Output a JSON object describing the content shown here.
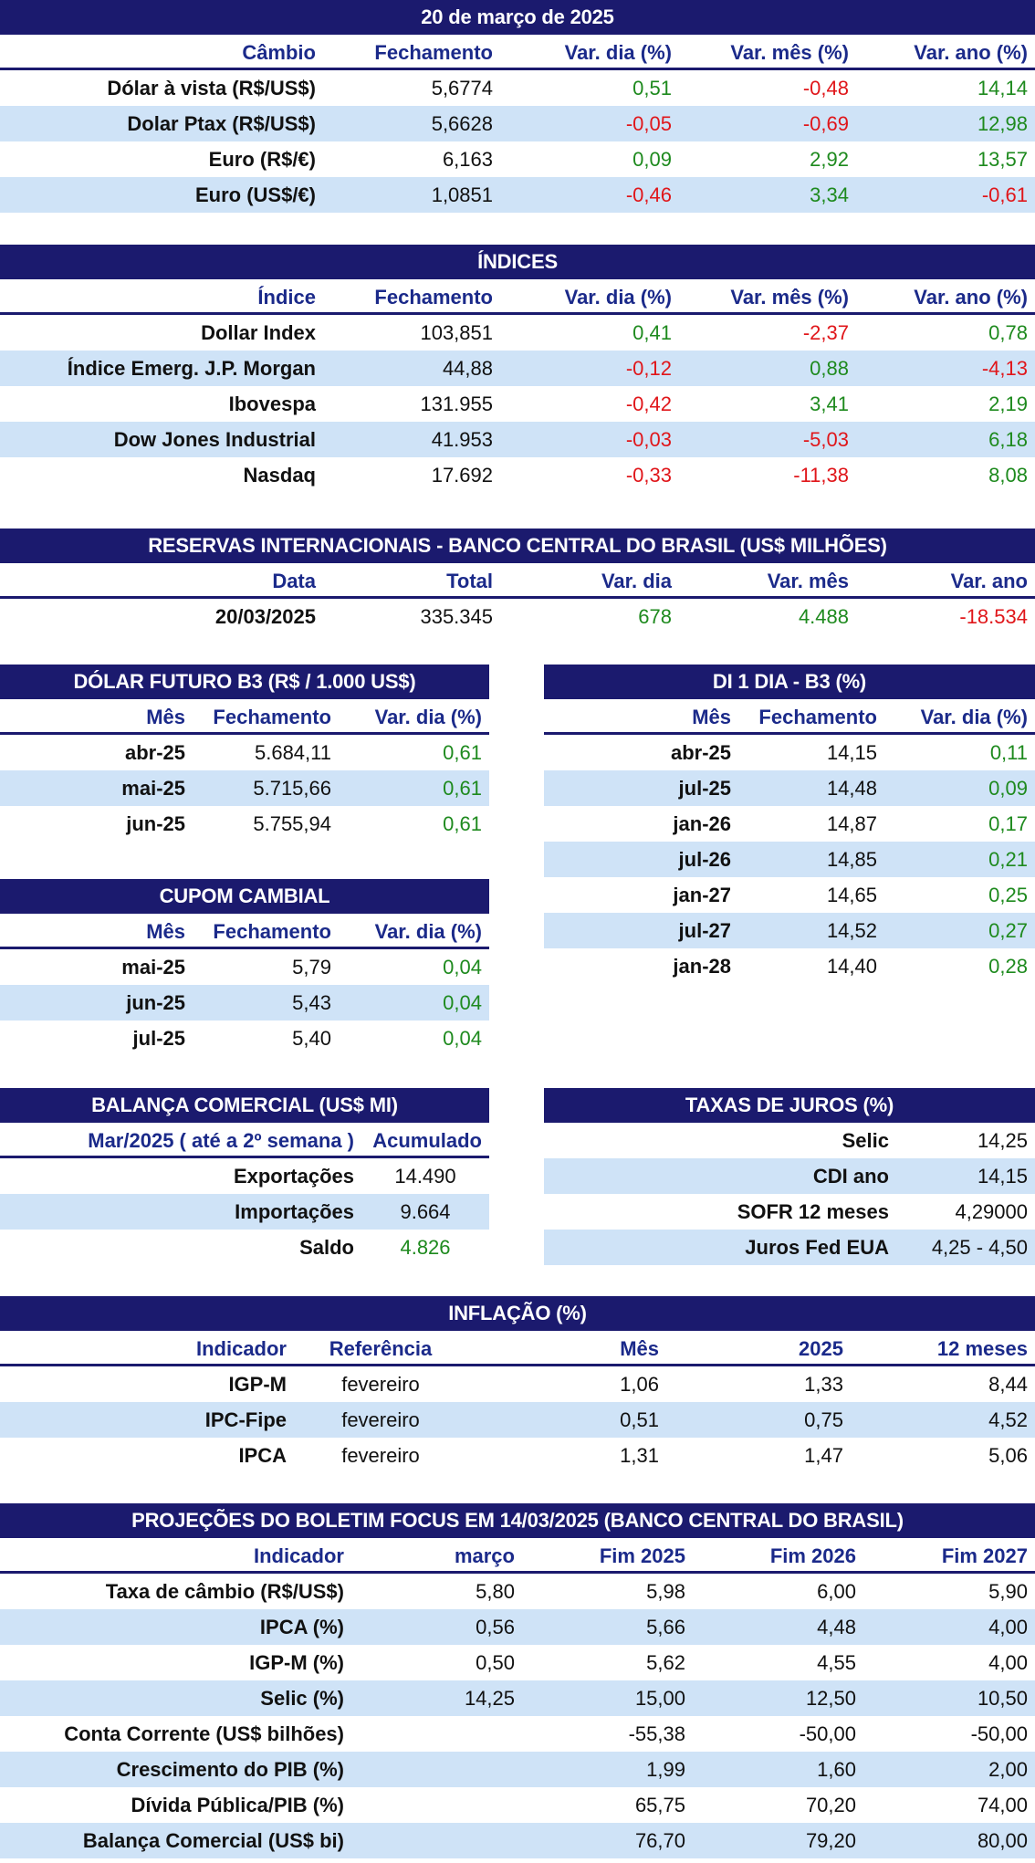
{
  "colors": {
    "banner": "#1b1a6e",
    "header_text": "#1b2a8a",
    "shade": "#cfe3f7",
    "positive": "#1e8a1e",
    "negative": "#e0161a"
  },
  "cambio": {
    "title": "20 de março de 2025",
    "headers": [
      "Câmbio",
      "Fechamento",
      "Var. dia (%)",
      "Var. mês (%)",
      "Var. ano (%)"
    ],
    "rows": [
      [
        "Dólar à vista (R$/US$)",
        "5,6774",
        "0,51",
        "-0,48",
        "14,14"
      ],
      [
        "Dolar Ptax (R$/US$)",
        "5,6628",
        "-0,05",
        "-0,69",
        "12,98"
      ],
      [
        "Euro (R$/€)",
        "6,163",
        "0,09",
        "2,92",
        "13,57"
      ],
      [
        "Euro (US$/€)",
        "1,0851",
        "-0,46",
        "3,34",
        "-0,61"
      ]
    ]
  },
  "indices": {
    "title": "ÍNDICES",
    "headers": [
      "Índice",
      "Fechamento",
      "Var. dia (%)",
      "Var. mês (%)",
      "Var. ano (%)"
    ],
    "rows": [
      [
        "Dollar Index",
        "103,851",
        "0,41",
        "-2,37",
        "0,78"
      ],
      [
        "Índice Emerg. J.P. Morgan",
        "44,88",
        "-0,12",
        "0,88",
        "-4,13"
      ],
      [
        "Ibovespa",
        "131.955",
        "-0,42",
        "3,41",
        "2,19"
      ],
      [
        "Dow Jones Industrial",
        "41.953",
        "-0,03",
        "-5,03",
        "6,18"
      ],
      [
        "Nasdaq",
        "17.692",
        "-0,33",
        "-11,38",
        "8,08"
      ]
    ]
  },
  "reservas": {
    "title": "RESERVAS INTERNACIONAIS - BANCO CENTRAL DO BRASIL (US$ MILHÕES)",
    "headers": [
      "Data",
      "Total",
      "Var. dia",
      "Var. mês",
      "Var. ano"
    ],
    "rows": [
      [
        "20/03/2025",
        "335.345",
        "678",
        "4.488",
        "-18.534"
      ]
    ]
  },
  "dolar_futuro": {
    "title": "DÓLAR FUTURO B3 (R$ / 1.000 US$)",
    "headers": [
      "Mês",
      "Fechamento",
      "Var. dia (%)"
    ],
    "rows": [
      [
        "abr-25",
        "5.684,11",
        "0,61"
      ],
      [
        "mai-25",
        "5.715,66",
        "0,61"
      ],
      [
        "jun-25",
        "5.755,94",
        "0,61"
      ]
    ]
  },
  "di1": {
    "title": "DI 1 DIA - B3 (%)",
    "headers": [
      "Mês",
      "Fechamento",
      "Var. dia (%)"
    ],
    "rows": [
      [
        "abr-25",
        "14,15",
        "0,11"
      ],
      [
        "jul-25",
        "14,48",
        "0,09"
      ],
      [
        "jan-26",
        "14,87",
        "0,17"
      ],
      [
        "jul-26",
        "14,85",
        "0,21"
      ],
      [
        "jan-27",
        "14,65",
        "0,25"
      ],
      [
        "jul-27",
        "14,52",
        "0,27"
      ],
      [
        "jan-28",
        "14,40",
        "0,28"
      ]
    ]
  },
  "cupom": {
    "title": "CUPOM CAMBIAL",
    "headers": [
      "Mês",
      "Fechamento",
      "Var. dia (%)"
    ],
    "rows": [
      [
        "mai-25",
        "5,79",
        "0,04"
      ],
      [
        "jun-25",
        "5,43",
        "0,04"
      ],
      [
        "jul-25",
        "5,40",
        "0,04"
      ]
    ]
  },
  "balanca": {
    "title": "BALANÇA COMERCIAL (US$ MI)",
    "headers": [
      "Mar/2025 ( até a 2º semana )",
      "Acumulado"
    ],
    "rows": [
      [
        "Exportações",
        "14.490"
      ],
      [
        "Importações",
        "9.664"
      ],
      [
        "Saldo",
        "4.826"
      ]
    ]
  },
  "juros": {
    "title": "TAXAS DE JUROS (%)",
    "rows": [
      [
        "Selic",
        "14,25"
      ],
      [
        "CDI ano",
        "14,15"
      ],
      [
        "SOFR 12 meses",
        "4,29000"
      ],
      [
        "Juros Fed EUA",
        "4,25 - 4,50"
      ]
    ]
  },
  "inflacao": {
    "title": "INFLAÇÃO (%)",
    "headers": [
      "Indicador",
      "Referência",
      "Mês",
      "2025",
      "12 meses"
    ],
    "rows": [
      [
        "IGP-M",
        "fevereiro",
        "1,06",
        "1,33",
        "8,44"
      ],
      [
        "IPC-Fipe",
        "fevereiro",
        "0,51",
        "0,75",
        "4,52"
      ],
      [
        "IPCA",
        "fevereiro",
        "1,31",
        "1,47",
        "5,06"
      ]
    ]
  },
  "focus": {
    "title": "PROJEÇÕES DO BOLETIM FOCUS EM 14/03/2025 (BANCO CENTRAL DO BRASIL)",
    "headers": [
      "Indicador",
      "março",
      "Fim 2025",
      "Fim 2026",
      "Fim 2027"
    ],
    "rows": [
      [
        "Taxa de câmbio (R$/US$)",
        "5,80",
        "5,98",
        "6,00",
        "5,90"
      ],
      [
        "IPCA (%)",
        "0,56",
        "5,66",
        "4,48",
        "4,00"
      ],
      [
        "IGP-M (%)",
        "0,50",
        "5,62",
        "4,55",
        "4,00"
      ],
      [
        "Selic (%)",
        "14,25",
        "15,00",
        "12,50",
        "10,50"
      ],
      [
        "Conta Corrente (US$ bilhões)",
        "",
        "-55,38",
        "-50,00",
        "-50,00"
      ],
      [
        "Crescimento do PIB (%)",
        "",
        "1,99",
        "1,60",
        "2,00"
      ],
      [
        "Dívida Pública/PIB (%)",
        "",
        "65,75",
        "70,20",
        "74,00"
      ],
      [
        "Balança Comercial (US$ bi)",
        "",
        "76,70",
        "79,20",
        "80,00"
      ]
    ]
  }
}
